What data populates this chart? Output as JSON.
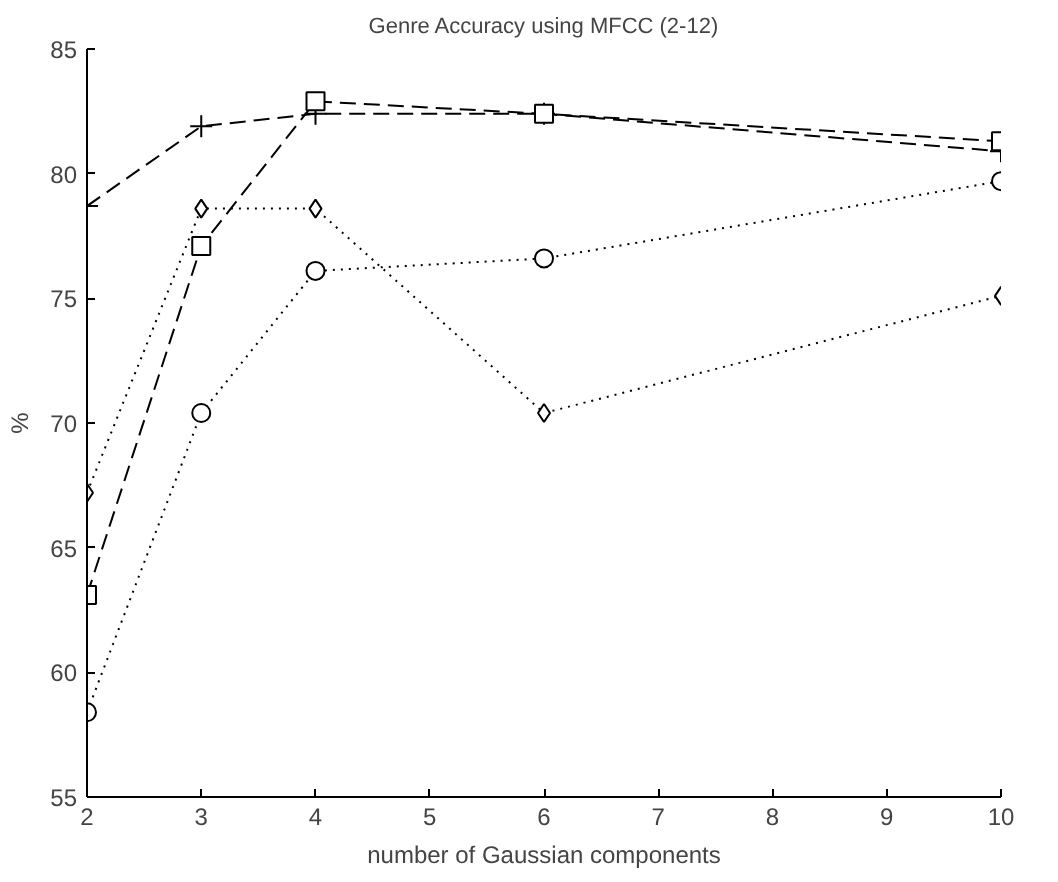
{
  "chart_data": {
    "type": "line",
    "title": "Genre Accuracy using MFCC (2-12)",
    "xlabel": "number of Gaussian components",
    "ylabel": "%",
    "x": [
      2,
      3,
      4,
      6,
      10
    ],
    "series": [
      {
        "color": "#000000",
        "marker": "cross",
        "line_style": "dashed",
        "values": [
          78.7,
          81.9,
          82.4,
          82.4,
          80.9
        ]
      },
      {
        "color": "#000000",
        "marker": "square",
        "line_style": "dashed",
        "values": [
          63.1,
          77.1,
          82.9,
          82.4,
          81.3
        ]
      },
      {
        "color": "#000000",
        "marker": "diamond",
        "line_style": "dotted",
        "values": [
          67.2,
          78.6,
          78.6,
          70.4,
          75.1
        ]
      },
      {
        "color": "#000000",
        "marker": "circle",
        "line_style": "dotted",
        "values": [
          58.4,
          70.4,
          76.1,
          76.6,
          79.7
        ]
      }
    ],
    "xlim": [
      2,
      10
    ],
    "xticks": [
      2,
      3,
      4,
      5,
      6,
      7,
      8,
      9,
      10
    ],
    "ylim": [
      55,
      85
    ],
    "yticks": [
      55,
      60,
      65,
      70,
      75,
      80,
      85
    ],
    "grid": false
  }
}
